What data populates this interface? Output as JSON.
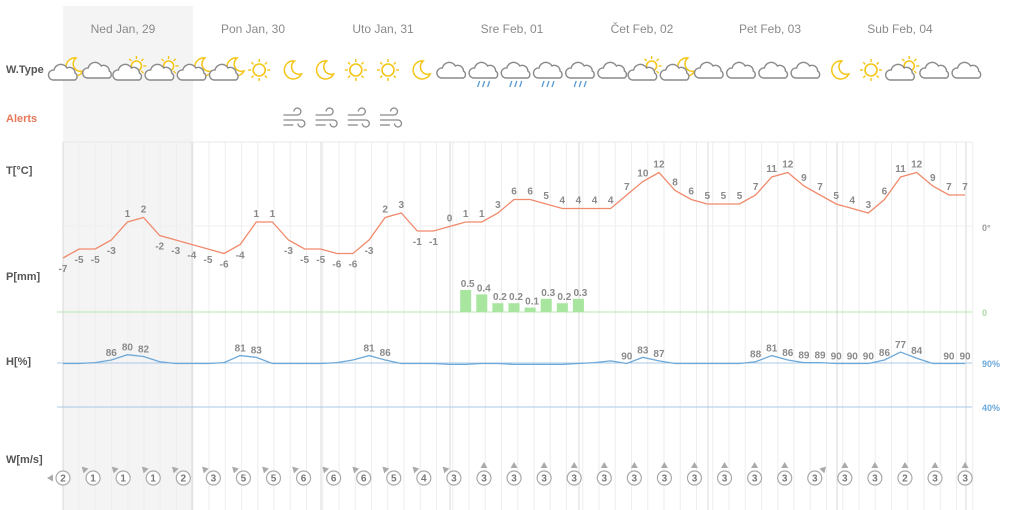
{
  "chart_data": {
    "type": "line",
    "days": [
      "Ned Jan, 29",
      "Pon Jan, 30",
      "Uto Jan, 31",
      "Sre Feb, 01",
      "Čet Feb, 02",
      "Pet Feb, 03",
      "Sub Feb, 04"
    ],
    "row_labels": {
      "weather_type": "W.Type",
      "alerts": "Alerts",
      "temperature": "T[°C]",
      "precipitation": "P[mm]",
      "humidity": "H[%]",
      "wind": "W[m/s]"
    },
    "weather_icons": [
      "cloud-moon",
      "cloud",
      "cloud-sun",
      "cloud-sun",
      "cloud-moon",
      "cloud-moon",
      "sun",
      "moon",
      "moon",
      "sun",
      "sun",
      "moon",
      "cloud",
      "cloud-rain",
      "cloud-rain",
      "cloud-rain",
      "cloud-rain",
      "cloud",
      "cloud-sun",
      "cloud-moon",
      "cloud",
      "cloud",
      "cloud",
      "cloud",
      "moon",
      "sun",
      "cloud-sun",
      "cloud",
      "cloud"
    ],
    "alerts": {
      "start_index": 7,
      "count": 4,
      "icon": "wind-icon"
    },
    "temperature": [
      -7,
      -5,
      -5,
      -3,
      1,
      2,
      -2,
      -3,
      -4,
      -5,
      -6,
      -4,
      1,
      1,
      -3,
      -5,
      -5,
      -6,
      -6,
      -3,
      2,
      3,
      -1,
      -1,
      0,
      1,
      1,
      3,
      6,
      6,
      5,
      4,
      4,
      4,
      4,
      7,
      10,
      12,
      8,
      6,
      5,
      5,
      5,
      7,
      11,
      12,
      9,
      7,
      5,
      4,
      3,
      6,
      11,
      12,
      9,
      7,
      7
    ],
    "temp_axis_label": "0°",
    "precipitation": {
      "start_index": 25,
      "values": [
        0.5,
        0.4,
        0.2,
        0.2,
        0.1,
        0.3,
        0.2,
        0.3
      ]
    },
    "precip_axis_label": "0",
    "humidity": {
      "values": [
        90,
        90,
        89,
        86,
        80,
        82,
        88,
        90,
        90,
        90,
        89,
        81,
        83,
        90,
        90,
        90,
        90,
        89,
        86,
        81,
        86,
        90,
        90,
        90,
        91,
        91,
        90,
        90,
        91,
        91,
        91,
        91,
        90,
        89,
        87,
        90,
        83,
        87,
        90,
        90,
        90,
        90,
        90,
        88,
        81,
        86,
        89,
        89,
        90,
        90,
        90,
        86,
        77,
        84,
        90,
        90,
        90
      ],
      "labels": [
        [
          3,
          86
        ],
        [
          4,
          80
        ],
        [
          5,
          82
        ],
        [
          11,
          81
        ],
        [
          12,
          83
        ],
        [
          19,
          81
        ],
        [
          20,
          86
        ],
        [
          35,
          90
        ],
        [
          36,
          83
        ],
        [
          37,
          87
        ],
        [
          43,
          88
        ],
        [
          44,
          81
        ],
        [
          45,
          86
        ],
        [
          46,
          89
        ],
        [
          47,
          89
        ],
        [
          48,
          90
        ],
        [
          49,
          90
        ],
        [
          50,
          90
        ],
        [
          51,
          86
        ],
        [
          52,
          77
        ],
        [
          53,
          84
        ],
        [
          55,
          90
        ],
        [
          56,
          90
        ]
      ]
    },
    "humidity_axis_labels": [
      "90%",
      "40%"
    ],
    "wind": {
      "speeds": [
        2,
        1,
        1,
        1,
        2,
        3,
        5,
        5,
        6,
        6,
        6,
        5,
        4,
        3,
        3,
        3,
        3,
        3,
        3,
        3,
        3,
        3,
        3,
        3,
        3,
        3,
        3,
        3,
        2,
        3,
        3
      ],
      "directions_deg": [
        270,
        315,
        315,
        315,
        315,
        315,
        315,
        315,
        315,
        315,
        315,
        315,
        315,
        315,
        0,
        0,
        0,
        0,
        0,
        0,
        0,
        0,
        0,
        0,
        0,
        45,
        0,
        0,
        0,
        0,
        0
      ]
    },
    "colors": {
      "temperature": "#f08a6c",
      "precipitation": "#a8e6a0",
      "precip_baseline": "#b9e7b5",
      "humidity": "#6ca8d8",
      "humidity_ref": "#a9c9e6",
      "alerts_label": "#e8785a",
      "night_shade": "#f4f4f4",
      "sun": "#f5c518",
      "cloud": "#8a8a8a",
      "rain": "#5b9bd5"
    }
  }
}
